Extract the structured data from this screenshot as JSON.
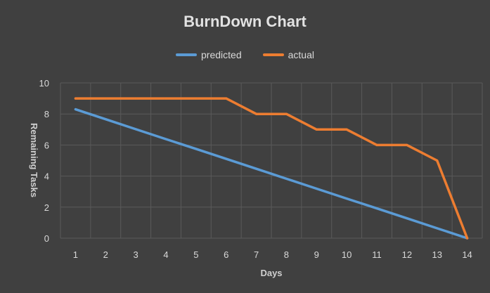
{
  "chart_data": {
    "type": "line",
    "title": "BurnDown Chart",
    "xlabel": "Days",
    "ylabel": "Remaining Tasks",
    "x": [
      1,
      2,
      3,
      4,
      5,
      6,
      7,
      8,
      9,
      10,
      11,
      12,
      13,
      14
    ],
    "ylim": [
      0,
      10
    ],
    "yticks": [
      0,
      2,
      4,
      6,
      8,
      10
    ],
    "grid": true,
    "legend_position": "top",
    "series": [
      {
        "name": "predicted",
        "color": "#5b9bd5",
        "values": [
          8.3,
          7.66,
          7.02,
          6.38,
          5.75,
          5.11,
          4.47,
          3.83,
          3.19,
          2.55,
          1.92,
          1.28,
          0.64,
          0
        ]
      },
      {
        "name": "actual",
        "color": "#ed7d31",
        "values": [
          9,
          9,
          9,
          9,
          9,
          9,
          8,
          8,
          7,
          7,
          6,
          6,
          5,
          0
        ]
      }
    ]
  }
}
